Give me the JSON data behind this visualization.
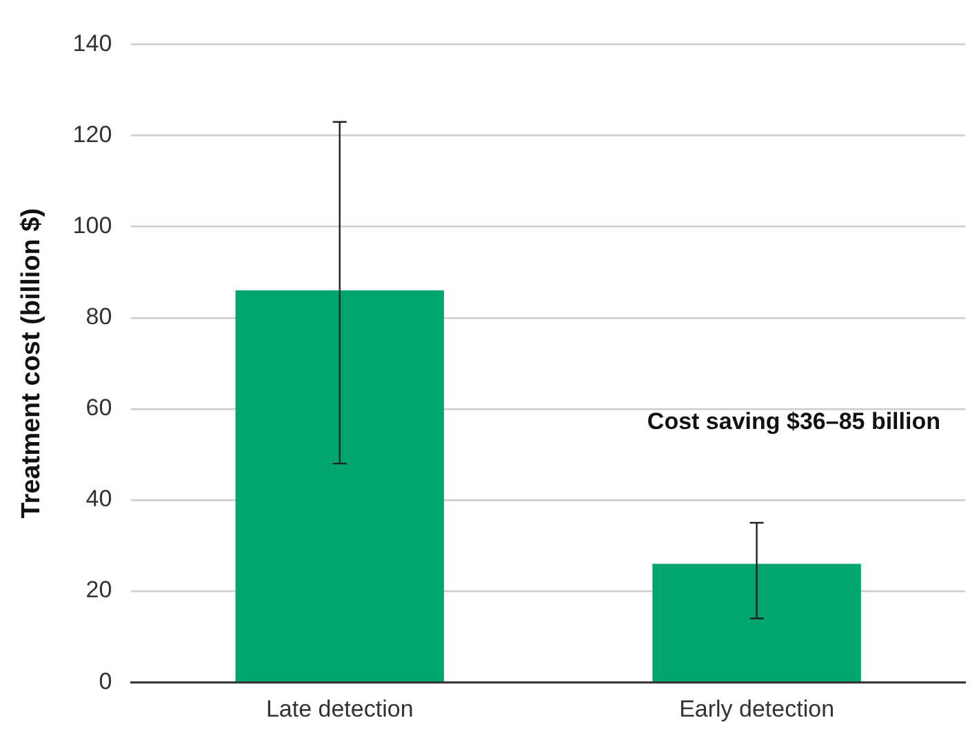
{
  "chart_data": {
    "type": "bar",
    "ylabel": "Treatment cost (billion $)",
    "categories": [
      "Late detection",
      "Early detection"
    ],
    "values": [
      86,
      26
    ],
    "color": "#00a66e",
    "errors": [
      [
        48,
        123
      ],
      [
        14,
        35
      ]
    ],
    "ylim": [
      0,
      140
    ],
    "yticks": [
      0,
      20,
      40,
      60,
      80,
      100,
      120,
      140
    ],
    "grid": "y",
    "legend": false,
    "annotations": [
      "Cost saving $36–85 billion"
    ]
  }
}
